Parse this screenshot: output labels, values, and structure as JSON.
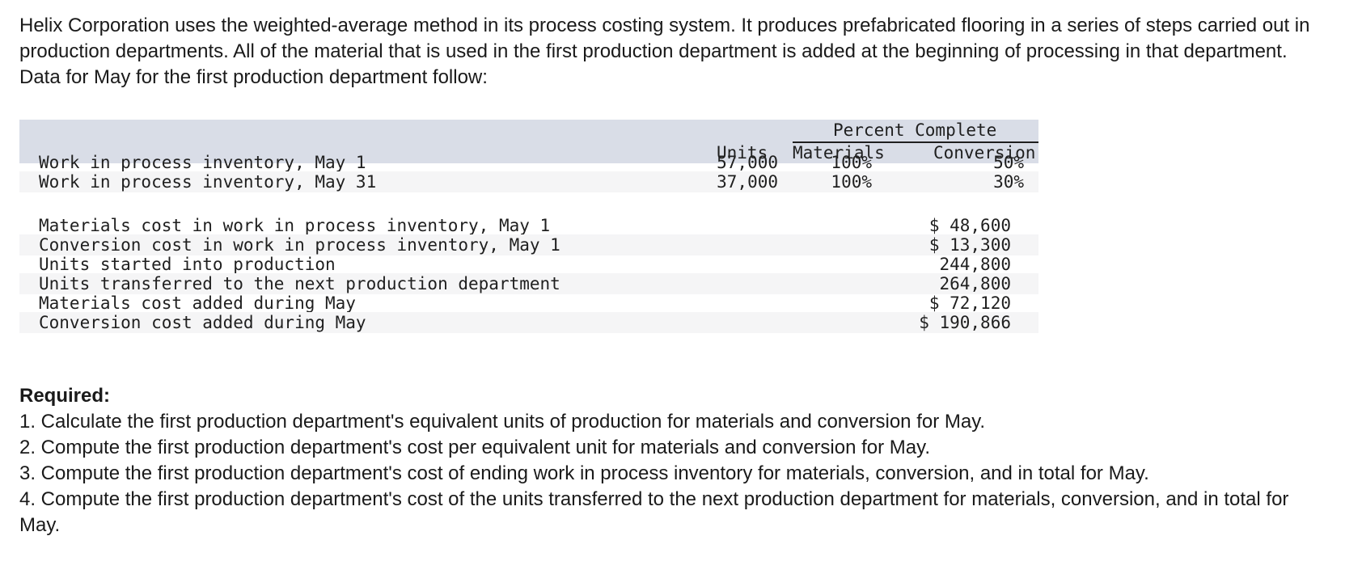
{
  "intro": "Helix Corporation uses the weighted-average method in its process costing system. It produces prefabricated flooring in a series of steps carried out in production departments. All of the material that is used in the first production department is added at the beginning of processing in that department. Data for May for the first production department follow:",
  "table": {
    "percent_complete_label": "Percent Complete",
    "col_units": "Units",
    "col_materials": "Materials",
    "col_conversion": "Conversion",
    "wip_rows": [
      {
        "label": "Work in process inventory, May 1",
        "units": "57,000",
        "materials": "100%",
        "conversion": "50%"
      },
      {
        "label": "Work in process inventory, May 31",
        "units": "37,000",
        "materials": "100%",
        "conversion": "30%"
      }
    ],
    "cost_rows": [
      {
        "label": "Materials cost in work in process inventory, May 1",
        "value": "$ 48,600"
      },
      {
        "label": "Conversion cost in work in process inventory, May 1",
        "value": "$ 13,300"
      },
      {
        "label": "Units started into production",
        "value": "244,800"
      },
      {
        "label": "Units transferred to the next production department",
        "value": "264,800"
      },
      {
        "label": "Materials cost added during May",
        "value": "$ 72,120"
      },
      {
        "label": "Conversion cost added during May",
        "value": "$ 190,866"
      }
    ]
  },
  "required": {
    "title": "Required:",
    "items": [
      "1. Calculate the first production department's equivalent units of production for materials and conversion for May.",
      "2. Compute the first production department's cost per equivalent unit for materials and conversion for May.",
      "3. Compute the first production department's cost of ending work in process inventory for materials, conversion, and in total for May.",
      "4. Compute the first production department's cost of the units transferred to the next production department for materials, conversion, and in total for May."
    ]
  }
}
